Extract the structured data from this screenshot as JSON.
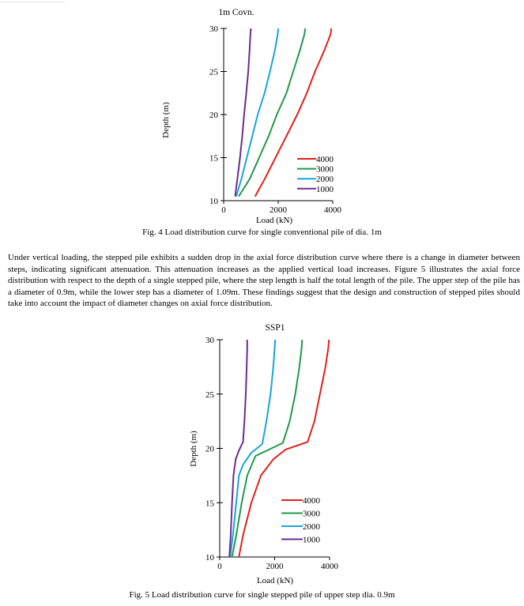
{
  "chart_data": [
    {
      "type": "line",
      "title": "1m Covn.",
      "xlabel": "Load (kN)",
      "ylabel": "Depth (m)",
      "xlim": [
        0,
        4000
      ],
      "ylim": [
        10,
        30
      ],
      "x_ticks": [
        "0",
        "2000",
        "4000"
      ],
      "y_ticks": [
        "10",
        "15",
        "20",
        "25",
        "30"
      ],
      "legend_position": "right",
      "series": [
        {
          "name": "4000",
          "color": "#e0201c",
          "points": [
            [
              1150,
              10.5
            ],
            [
              1500,
              12.5
            ],
            [
              1900,
              15
            ],
            [
              2300,
              17.5
            ],
            [
              2700,
              20
            ],
            [
              3050,
              22.5
            ],
            [
              3350,
              25
            ],
            [
              3700,
              27.5
            ],
            [
              3920,
              29.3
            ],
            [
              3950,
              30
            ]
          ]
        },
        {
          "name": "3000",
          "color": "#1f9a48",
          "points": [
            [
              550,
              10.5
            ],
            [
              950,
              12.5
            ],
            [
              1300,
              15
            ],
            [
              1650,
              17.5
            ],
            [
              1950,
              20
            ],
            [
              2300,
              22.5
            ],
            [
              2550,
              25
            ],
            [
              2800,
              27.5
            ],
            [
              2960,
              29.3
            ],
            [
              2990,
              30
            ]
          ]
        },
        {
          "name": "2000",
          "color": "#16a5de",
          "points": [
            [
              460,
              10.5
            ],
            [
              650,
              12.5
            ],
            [
              850,
              15
            ],
            [
              1050,
              17.5
            ],
            [
              1250,
              20
            ],
            [
              1500,
              22.5
            ],
            [
              1700,
              25
            ],
            [
              1880,
              27.5
            ],
            [
              1980,
              29.3
            ],
            [
              2000,
              30
            ]
          ]
        },
        {
          "name": "1000",
          "color": "#6a2c91",
          "points": [
            [
              420,
              10.5
            ],
            [
              500,
              12.5
            ],
            [
              600,
              15
            ],
            [
              680,
              17.5
            ],
            [
              750,
              20
            ],
            [
              830,
              22.5
            ],
            [
              900,
              25
            ],
            [
              950,
              27.5
            ],
            [
              980,
              29.3
            ],
            [
              1000,
              30
            ]
          ]
        }
      ]
    },
    {
      "type": "line",
      "title": "SSP1",
      "xlabel": "Load (kN)",
      "ylabel": "Depth (m)",
      "xlim": [
        0,
        4000
      ],
      "ylim": [
        10,
        30
      ],
      "x_ticks": [
        "0",
        "2000",
        "4000"
      ],
      "y_ticks": [
        "10",
        "15",
        "20",
        "25",
        "30"
      ],
      "legend_position": "right",
      "series": [
        {
          "name": "4000",
          "color": "#e0201c",
          "points": [
            [
              700,
              10
            ],
            [
              850,
              12
            ],
            [
              1150,
              15
            ],
            [
              1500,
              17.5
            ],
            [
              1950,
              19
            ],
            [
              2400,
              19.9
            ],
            [
              3200,
              20.6
            ],
            [
              3450,
              22.5
            ],
            [
              3650,
              25
            ],
            [
              3850,
              27.5
            ],
            [
              3950,
              29.2
            ],
            [
              3980,
              30
            ]
          ]
        },
        {
          "name": "3000",
          "color": "#1f9a48",
          "points": [
            [
              450,
              10
            ],
            [
              600,
              12
            ],
            [
              800,
              15
            ],
            [
              1000,
              17.5
            ],
            [
              1300,
              19.3
            ],
            [
              1550,
              19.6
            ],
            [
              2300,
              20.5
            ],
            [
              2550,
              22.5
            ],
            [
              2750,
              25
            ],
            [
              2900,
              27.5
            ],
            [
              2980,
              29.2
            ],
            [
              3000,
              30
            ]
          ]
        },
        {
          "name": "2000",
          "color": "#16a5de",
          "points": [
            [
              380,
              10
            ],
            [
              480,
              12
            ],
            [
              600,
              15
            ],
            [
              700,
              17.5
            ],
            [
              850,
              18.5
            ],
            [
              1150,
              19.6
            ],
            [
              1550,
              20.4
            ],
            [
              1700,
              22.5
            ],
            [
              1850,
              25
            ],
            [
              1950,
              27.5
            ],
            [
              2000,
              29.2
            ],
            [
              2020,
              30
            ]
          ]
        },
        {
          "name": "1000",
          "color": "#6a2c91",
          "points": [
            [
              350,
              10
            ],
            [
              400,
              12
            ],
            [
              450,
              15
            ],
            [
              500,
              17.5
            ],
            [
              580,
              19
            ],
            [
              700,
              19.8
            ],
            [
              850,
              20.6
            ],
            [
              900,
              22.5
            ],
            [
              950,
              25
            ],
            [
              980,
              27.5
            ],
            [
              1000,
              29.2
            ],
            [
              1000,
              30
            ]
          ]
        }
      ]
    }
  ],
  "captions": {
    "fig4": "Fig. 4 Load distribution curve for single conventional pile of dia. 1m",
    "fig5": "Fig. 5 Load distribution curve for single stepped pile of upper step dia. 0.9m"
  },
  "paragraph": "Under vertical loading, the stepped pile exhibits a sudden drop in the axial force distribution curve where there is a change in diameter between steps, indicating significant attenuation. This attenuation increases as the applied vertical load increases. Figure 5 illustrates the axial force distribution with respect to the depth of a single stepped pile, where the step length is half the total length of the pile. The upper step of the pile has a diameter of 0.9m, while the lower step has a diameter of 1.09m. These findings suggest that the design and construction of stepped piles should take into account the impact of diameter changes on axial force distribution."
}
